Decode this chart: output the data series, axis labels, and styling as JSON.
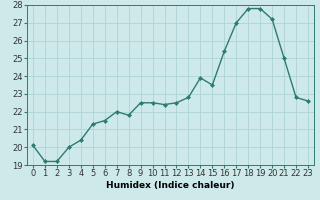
{
  "x": [
    0,
    1,
    2,
    3,
    4,
    5,
    6,
    7,
    8,
    9,
    10,
    11,
    12,
    13,
    14,
    15,
    16,
    17,
    18,
    19,
    20,
    21,
    22,
    23
  ],
  "y": [
    20.1,
    19.2,
    19.2,
    20.0,
    20.4,
    21.3,
    21.5,
    22.0,
    21.8,
    22.5,
    22.5,
    22.4,
    22.5,
    22.8,
    23.9,
    23.5,
    25.4,
    27.0,
    27.8,
    27.8,
    27.2,
    25.0,
    22.8,
    22.6
  ],
  "line_color": "#2d7d6e",
  "marker": "D",
  "markersize": 2.0,
  "linewidth": 1.0,
  "bg_color": "#cde9e9",
  "grid_color": "#aed4d4",
  "xlabel": "Humidex (Indice chaleur)",
  "ylim": [
    19,
    28
  ],
  "xlim": [
    -0.5,
    23.5
  ],
  "yticks": [
    19,
    20,
    21,
    22,
    23,
    24,
    25,
    26,
    27,
    28
  ],
  "xticks": [
    0,
    1,
    2,
    3,
    4,
    5,
    6,
    7,
    8,
    9,
    10,
    11,
    12,
    13,
    14,
    15,
    16,
    17,
    18,
    19,
    20,
    21,
    22,
    23
  ],
  "xlabel_fontsize": 6.5,
  "tick_fontsize": 6.0
}
